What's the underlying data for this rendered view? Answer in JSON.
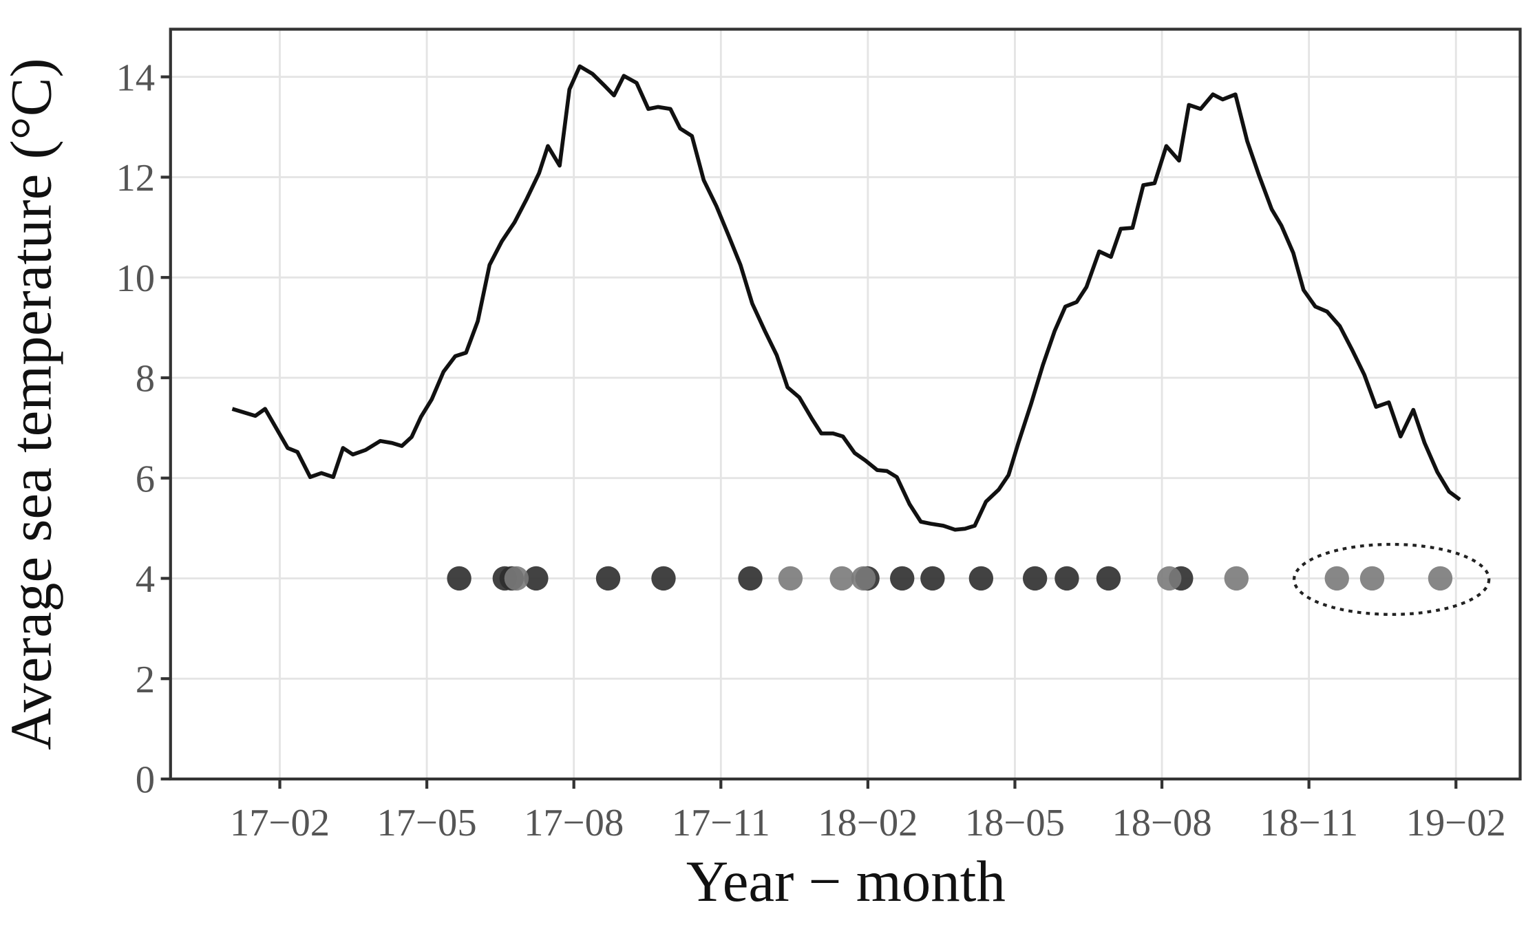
{
  "chart_data": {
    "type": "line",
    "x_label": "Year − month",
    "y_label": "Average sea temperature (°C)",
    "xlim": [
      -1.23,
      26.31
    ],
    "ylim": [
      0,
      14.95
    ],
    "xticks": [
      {
        "value": 1,
        "label": "17−02"
      },
      {
        "value": 4,
        "label": "17−05"
      },
      {
        "value": 7,
        "label": "17−08"
      },
      {
        "value": 10,
        "label": "17−11"
      },
      {
        "value": 13,
        "label": "18−02"
      },
      {
        "value": 16,
        "label": "18−05"
      },
      {
        "value": 19,
        "label": "18−08"
      },
      {
        "value": 22,
        "label": "18−11"
      },
      {
        "value": 25,
        "label": "19−02"
      }
    ],
    "yticks": [
      0,
      2,
      4,
      6,
      8,
      10,
      12,
      14
    ],
    "grid": true,
    "series": [
      {
        "type": "line",
        "color": "#111111",
        "x": [
          0.03,
          0.5,
          0.7,
          1.16,
          1.36,
          1.62,
          1.85,
          2.09,
          2.29,
          2.49,
          2.75,
          3.05,
          3.29,
          3.49,
          3.69,
          3.88,
          4.1,
          4.34,
          4.58,
          4.8,
          5.04,
          5.28,
          5.53,
          5.79,
          6.03,
          6.29,
          6.47,
          6.71,
          6.91,
          7.12,
          7.38,
          7.62,
          7.82,
          8.02,
          8.28,
          8.52,
          8.72,
          8.97,
          9.17,
          9.41,
          9.65,
          9.91,
          10.16,
          10.4,
          10.64,
          10.9,
          11.14,
          11.36,
          11.6,
          11.86,
          12.05,
          12.29,
          12.49,
          12.73,
          12.95,
          13.19,
          13.39,
          13.59,
          13.85,
          14.08,
          14.28,
          14.54,
          14.78,
          14.98,
          15.18,
          15.41,
          15.67,
          15.87,
          16.07,
          16.33,
          16.57,
          16.81,
          17.03,
          17.26,
          17.46,
          17.72,
          17.96,
          18.16,
          18.4,
          18.62,
          18.85,
          19.09,
          19.35,
          19.55,
          19.79,
          20.04,
          20.24,
          20.5,
          20.74,
          20.98,
          21.24,
          21.44,
          21.68,
          21.89,
          22.13,
          22.37,
          22.63,
          22.89,
          23.13,
          23.37,
          23.63,
          23.87,
          24.13,
          24.36,
          24.62,
          24.86,
          25.08
        ],
        "values": [
          7.38,
          7.24,
          7.38,
          6.6,
          6.52,
          6.02,
          6.1,
          6.02,
          6.6,
          6.47,
          6.56,
          6.74,
          6.7,
          6.64,
          6.82,
          7.22,
          7.57,
          8.12,
          8.43,
          8.5,
          9.13,
          10.25,
          10.72,
          11.1,
          11.55,
          12.08,
          12.62,
          12.23,
          13.75,
          14.21,
          14.06,
          13.83,
          13.63,
          14.02,
          13.88,
          13.36,
          13.4,
          13.36,
          12.97,
          12.82,
          11.94,
          11.42,
          10.83,
          10.25,
          9.48,
          8.93,
          8.45,
          7.81,
          7.61,
          7.18,
          6.89,
          6.89,
          6.83,
          6.5,
          6.35,
          6.16,
          6.14,
          6.02,
          5.48,
          5.13,
          5.09,
          5.05,
          4.97,
          4.99,
          5.05,
          5.53,
          5.77,
          6.06,
          6.7,
          7.48,
          8.25,
          8.93,
          9.42,
          9.51,
          9.81,
          10.52,
          10.41,
          10.97,
          10.99,
          11.84,
          11.88,
          12.62,
          12.33,
          13.44,
          13.36,
          13.65,
          13.55,
          13.65,
          12.72,
          12.04,
          11.36,
          11.03,
          10.49,
          9.75,
          9.42,
          9.32,
          9.03,
          8.54,
          8.06,
          7.42,
          7.51,
          6.83,
          7.36,
          6.7,
          6.12,
          5.73,
          5.57
        ]
      },
      {
        "type": "scatter",
        "color": "#2e2e2e",
        "x": [
          4.66,
          5.59,
          5.73,
          6.23,
          7.7,
          8.83,
          10.6,
          12.99,
          13.7,
          14.32,
          15.31,
          16.41,
          17.06,
          17.91,
          19.39
        ],
        "values": [
          4,
          4,
          4,
          4,
          4,
          4,
          4,
          4,
          4,
          4,
          4,
          4,
          4,
          4,
          4
        ]
      },
      {
        "type": "scatter",
        "color": "#7a7a7a",
        "x": [
          5.83,
          11.42,
          12.47,
          12.91,
          19.15,
          20.52,
          22.57,
          23.29,
          24.68
        ],
        "values": [
          4,
          4,
          4,
          4,
          4,
          4,
          4,
          4,
          4
        ]
      }
    ]
  }
}
